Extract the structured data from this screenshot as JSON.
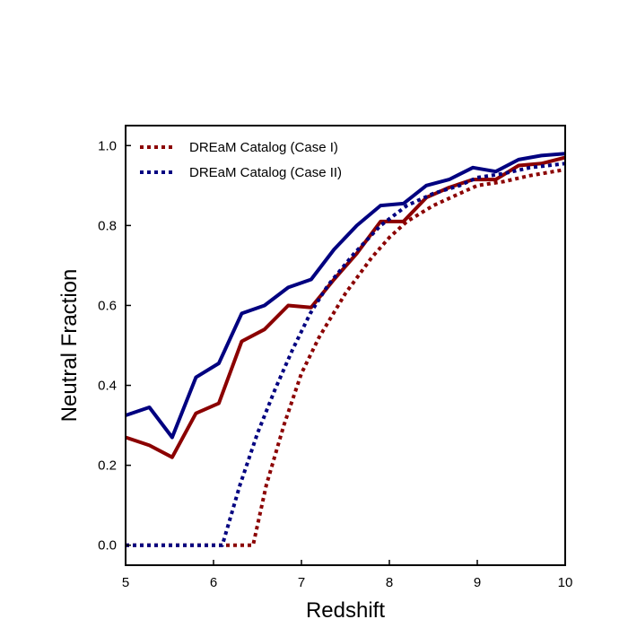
{
  "chart_data": {
    "type": "line",
    "title": "",
    "xlabel": "Redshift",
    "ylabel": "Neutral Fraction",
    "xlim": [
      5,
      10
    ],
    "ylim": [
      -0.05,
      1.05
    ],
    "xticks": [
      5,
      6,
      7,
      8,
      9,
      10
    ],
    "xtick_labels": [
      "5",
      "6",
      "7",
      "8",
      "9",
      "10"
    ],
    "yticks": [
      0.0,
      0.2,
      0.4,
      0.6,
      0.8,
      1.0
    ],
    "ytick_labels": [
      "0.0",
      "0.2",
      "0.4",
      "0.6",
      "0.8",
      "1.0"
    ],
    "grid": false,
    "legend_position": "top-left",
    "legend": [
      "DREaM Catalog (Case I)",
      "DREaM Catalog (Case II)"
    ],
    "series": [
      {
        "name": "DREaM Catalog (Case I)",
        "style": "dotted",
        "color": "#8b0000",
        "x": [
          5.0,
          5.5,
          6.0,
          6.1,
          6.3,
          6.45,
          6.6,
          6.8,
          7.0,
          7.2,
          7.5,
          7.8,
          8.0,
          8.2,
          8.5,
          8.8,
          9.0,
          9.3,
          9.6,
          10.0
        ],
        "y": [
          0.0,
          0.0,
          0.0,
          0.0,
          0.0,
          0.0,
          0.15,
          0.3,
          0.43,
          0.52,
          0.63,
          0.72,
          0.77,
          0.81,
          0.85,
          0.88,
          0.9,
          0.91,
          0.925,
          0.94
        ]
      },
      {
        "name": "DREaM Catalog (Case II)",
        "style": "dotted",
        "color": "#000080",
        "x": [
          5.0,
          5.5,
          6.0,
          6.1,
          6.3,
          6.5,
          6.7,
          6.9,
          7.1,
          7.3,
          7.6,
          7.9,
          8.2,
          8.5,
          8.8,
          9.0,
          9.3,
          9.6,
          10.0
        ],
        "y": [
          0.0,
          0.0,
          0.0,
          0.0,
          0.15,
          0.28,
          0.39,
          0.49,
          0.58,
          0.65,
          0.73,
          0.8,
          0.85,
          0.88,
          0.9,
          0.92,
          0.93,
          0.945,
          0.955
        ]
      },
      {
        "color": "#8b0000",
        "style": "solid",
        "x": [
          5.0,
          5.27,
          5.53,
          5.8,
          6.06,
          6.32,
          6.58,
          6.85,
          7.11,
          7.37,
          7.63,
          7.9,
          8.16,
          8.42,
          8.68,
          8.95,
          9.21,
          9.47,
          9.73,
          10.0
        ],
        "y": [
          0.27,
          0.25,
          0.22,
          0.33,
          0.355,
          0.51,
          0.54,
          0.6,
          0.595,
          0.665,
          0.73,
          0.81,
          0.81,
          0.87,
          0.895,
          0.915,
          0.915,
          0.95,
          0.955,
          0.97
        ]
      },
      {
        "color": "#000080",
        "style": "solid",
        "x": [
          5.0,
          5.27,
          5.53,
          5.8,
          6.06,
          6.32,
          6.58,
          6.85,
          7.11,
          7.37,
          7.63,
          7.9,
          8.16,
          8.42,
          8.68,
          8.95,
          9.21,
          9.47,
          9.73,
          10.0
        ],
        "y": [
          0.325,
          0.345,
          0.27,
          0.42,
          0.455,
          0.58,
          0.6,
          0.645,
          0.665,
          0.74,
          0.8,
          0.85,
          0.855,
          0.9,
          0.915,
          0.945,
          0.935,
          0.965,
          0.975,
          0.98
        ]
      }
    ]
  }
}
